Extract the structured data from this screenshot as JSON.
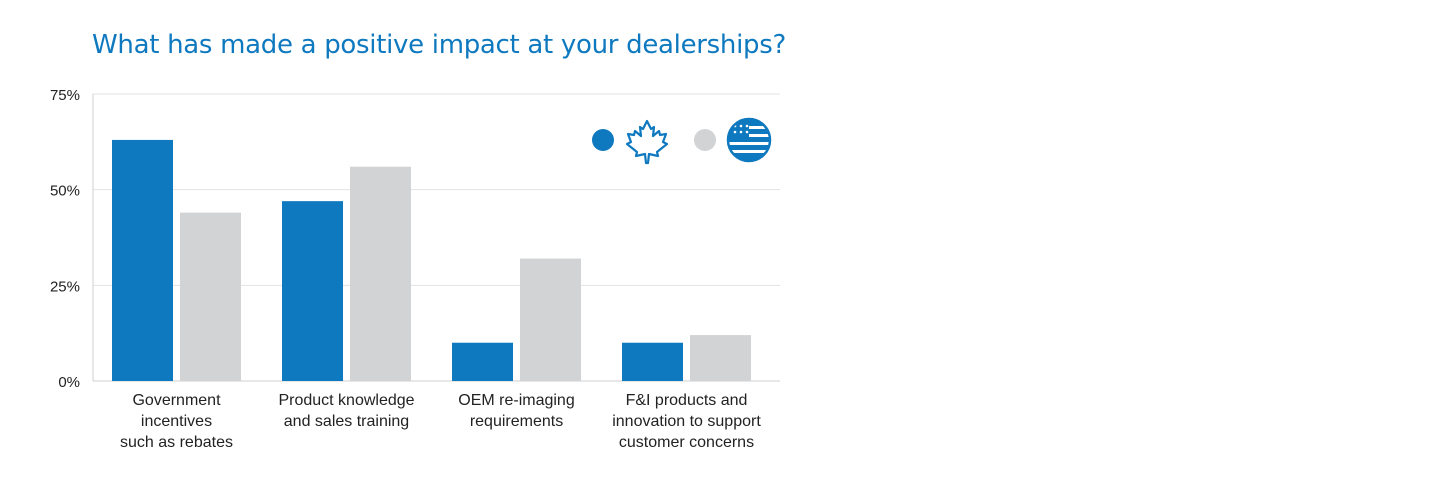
{
  "chart_data": {
    "type": "bar",
    "title": "What has made a positive impact at your dealerships?",
    "categories": [
      [
        "Government",
        "incentives",
        "such as rebates"
      ],
      [
        "Product knowledge",
        "and sales training"
      ],
      [
        "OEM re-imaging",
        "requirements"
      ],
      [
        "F&I products and",
        "innovation to support",
        "customer concerns"
      ]
    ],
    "series": [
      {
        "legend_icon": "canada-maple-leaf-icon",
        "color": "#0f79c0",
        "values": [
          63,
          47,
          10,
          10
        ]
      },
      {
        "legend_icon": "usa-flag-icon",
        "color": "#d1d3d4",
        "values": [
          44,
          56,
          32,
          12
        ]
      }
    ],
    "yticks": [
      "0%",
      "25%",
      "50%",
      "75%"
    ],
    "ylim": [
      0,
      75
    ],
    "grid": true,
    "legend_position": "top-right"
  }
}
